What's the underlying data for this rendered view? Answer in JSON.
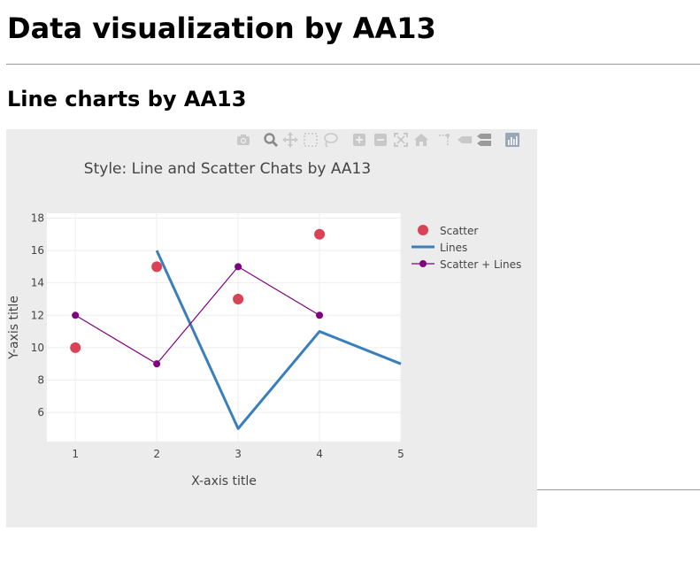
{
  "page": {
    "title": "Data visualization by AA13",
    "subtitle": "Line charts by AA13"
  },
  "modebar": {
    "buttons": [
      "camera-icon",
      "zoom-icon",
      "pan-icon",
      "box-select-icon",
      "lasso-select-icon",
      "zoom-in-icon",
      "zoom-out-icon",
      "autoscale-icon",
      "reset-axes-icon",
      "spike-lines-icon",
      "hover-closest-icon",
      "hover-compare-icon",
      "plotly-logo-icon"
    ]
  },
  "chart_data": {
    "type": "line",
    "title": "Style: Line and Scatter Chats by AA13",
    "xlabel": "X-axis title",
    "ylabel": "Y-axis title",
    "xlim": [
      0.65,
      5
    ],
    "ylim": [
      4.2,
      18.3
    ],
    "xticks": [
      1,
      2,
      3,
      4,
      5
    ],
    "yticks": [
      6,
      8,
      10,
      12,
      14,
      16,
      18
    ],
    "grid": true,
    "legend": "top-right",
    "series": [
      {
        "name": "Scatter",
        "mode": "markers",
        "color": "#d94355",
        "x": [
          1,
          2,
          3,
          4
        ],
        "y": [
          10,
          15,
          13,
          17
        ]
      },
      {
        "name": "Lines",
        "mode": "lines",
        "color": "#3a7fbd",
        "x": [
          2,
          3,
          4,
          5
        ],
        "y": [
          16,
          5,
          11,
          9
        ]
      },
      {
        "name": "Scatter + Lines",
        "mode": "lines+markers",
        "color": "#800080",
        "x": [
          1,
          2,
          3,
          4
        ],
        "y": [
          12,
          9,
          15,
          12
        ]
      }
    ]
  }
}
